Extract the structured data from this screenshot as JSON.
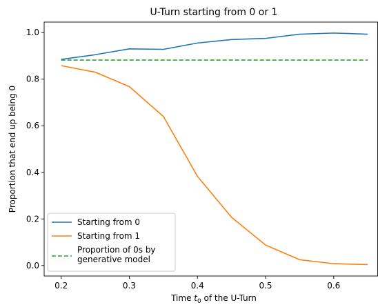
{
  "chart_data": {
    "type": "line",
    "title": "U-Turn starting from 0 or 1",
    "xlabel_prefix": "Time ",
    "xlabel_var": "t",
    "xlabel_sub": "0",
    "xlabel_suffix": " of the U-Turn",
    "ylabel": "Proportion that end up being 0",
    "xlim": [
      0.175,
      0.665
    ],
    "ylim": [
      -0.045,
      1.045
    ],
    "xticks": [
      0.2,
      0.3,
      0.4,
      0.5,
      0.6
    ],
    "xtick_labels": [
      "0.2",
      "0.3",
      "0.4",
      "0.5",
      "0.6"
    ],
    "yticks": [
      0.0,
      0.2,
      0.4,
      0.6,
      0.8,
      1.0
    ],
    "ytick_labels": [
      "0.0",
      "0.2",
      "0.4",
      "0.6",
      "0.8",
      "1.0"
    ],
    "grid": false,
    "legend_position": "lower-left",
    "x": [
      0.2,
      0.25,
      0.3,
      0.35,
      0.4,
      0.45,
      0.5,
      0.55,
      0.6,
      0.65
    ],
    "series": [
      {
        "name": "Starting from 0",
        "color": "#1f77b4",
        "style": "solid",
        "values": [
          0.885,
          0.905,
          0.93,
          0.928,
          0.955,
          0.97,
          0.975,
          0.993,
          0.998,
          0.993
        ]
      },
      {
        "name": "Starting from 1",
        "color": "#ff7f0e",
        "style": "solid",
        "values": [
          0.858,
          0.83,
          0.768,
          0.64,
          0.383,
          0.207,
          0.088,
          0.025,
          0.008,
          0.004
        ]
      },
      {
        "name": "Proportion of 0s by generative model",
        "legend_lines": [
          "Proportion of 0s by",
          "generative model"
        ],
        "color": "#2ca02c",
        "style": "dashed",
        "values": [
          0.882,
          0.882,
          0.882,
          0.882,
          0.882,
          0.882,
          0.882,
          0.882,
          0.882,
          0.882
        ]
      }
    ]
  }
}
